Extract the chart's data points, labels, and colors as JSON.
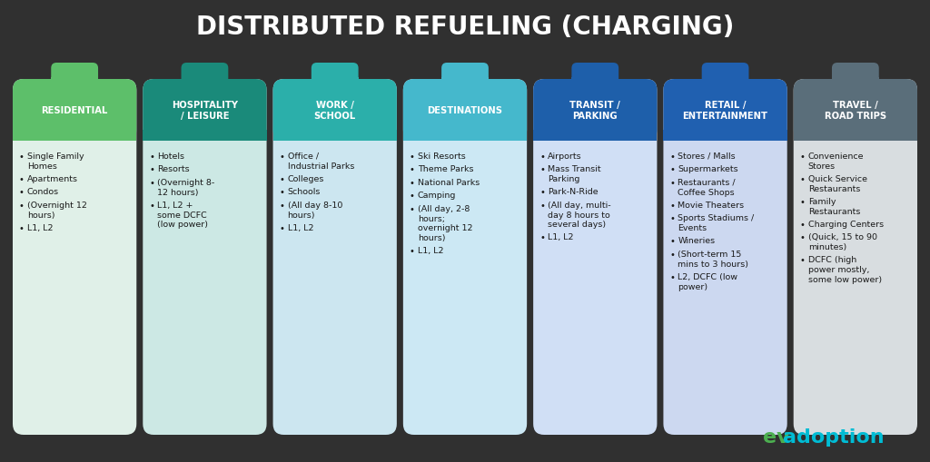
{
  "title": "DISTRIBUTED REFUELING (CHARGING)",
  "background_color": "#303030",
  "title_color": "#ffffff",
  "title_fontsize": 20,
  "columns": [
    {
      "header": "RESIDENTIAL",
      "header_bg": "#5dbf6a",
      "body_bg": "#e0f0e8",
      "tab_color": "#5dbf6a",
      "text_color": "#1a1a1a",
      "header_text_color": "#ffffff",
      "items": [
        "Single Family\nHomes",
        "Apartments",
        "Condos",
        "(Overnight 12\nhours)",
        "L1, L2"
      ]
    },
    {
      "header": "HOSPITALITY\n/ LEISURE",
      "header_bg": "#1a8a7a",
      "body_bg": "#cce8e4",
      "tab_color": "#1a8a7a",
      "text_color": "#1a1a1a",
      "header_text_color": "#ffffff",
      "items": [
        "Hotels",
        "Resorts",
        "(Overnight 8-\n12 hours)",
        "L1, L2 +\nsome DCFC\n(low power)"
      ]
    },
    {
      "header": "WORK /\nSCHOOL",
      "header_bg": "#2bafaa",
      "body_bg": "#cce6f0",
      "tab_color": "#2bafaa",
      "text_color": "#1a1a1a",
      "header_text_color": "#ffffff",
      "items": [
        "Office /\nIndustrial Parks",
        "Colleges",
        "Schools",
        "(All day 8-10\nhours)",
        "L1, L2"
      ]
    },
    {
      "header": "DESTINATIONS",
      "header_bg": "#45b8cc",
      "body_bg": "#cce8f4",
      "tab_color": "#45b8cc",
      "text_color": "#1a1a1a",
      "header_text_color": "#ffffff",
      "items": [
        "Ski Resorts",
        "Theme Parks",
        "National Parks",
        "Camping",
        "(All day, 2-8\nhours;\novernight 12\nhours)",
        "L1, L2"
      ]
    },
    {
      "header": "TRANSIT /\nPARKING",
      "header_bg": "#1e5faa",
      "body_bg": "#d0dff5",
      "tab_color": "#1e5faa",
      "text_color": "#1a1a1a",
      "header_text_color": "#ffffff",
      "items": [
        "Airports",
        "Mass Transit\nParking",
        "Park-N-Ride",
        "(All day, multi-\nday 8 hours to\nseveral days)",
        "L1, L2"
      ]
    },
    {
      "header": "RETAIL /\nENTERTAINMENT",
      "header_bg": "#2060b0",
      "body_bg": "#ccd8f0",
      "tab_color": "#2060b0",
      "text_color": "#1a1a1a",
      "header_text_color": "#ffffff",
      "items": [
        "Stores / Malls",
        "Supermarkets",
        "Restaurants /\nCoffee Shops",
        "Movie Theaters",
        "Sports Stadiums /\nEvents",
        "Wineries",
        "(Short-term 15\nmins to 3 hours)",
        "L2, DCFC (low\npower)"
      ]
    },
    {
      "header": "TRAVEL /\nROAD TRIPS",
      "header_bg": "#5a6e7a",
      "body_bg": "#d8dde0",
      "tab_color": "#5a6e7a",
      "text_color": "#1a1a1a",
      "header_text_color": "#ffffff",
      "items": [
        "Convenience\nStores",
        "Quick Service\nRestaurants",
        "Family\nRestaurants",
        "Charging Centers",
        "(Quick, 15 to 90\nminutes)",
        "DCFC (high\npower mostly,\nsome low power)"
      ]
    }
  ],
  "logo_ev_color": "#4caf50",
  "logo_adoption_color": "#00bcd4",
  "logo_fontsize": 16
}
